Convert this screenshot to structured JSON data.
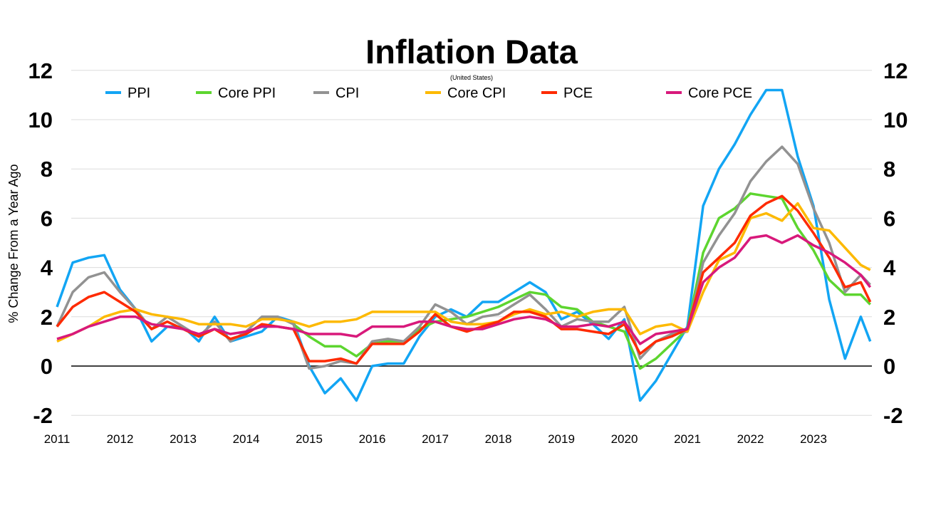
{
  "chart_data": {
    "type": "line",
    "title": "Inflation Data",
    "subtitle": "(United States)",
    "xlabel": "",
    "ylabel": "% Change From a Year Ago",
    "xlim": [
      2011,
      2023.9
    ],
    "ylim": [
      -2,
      12
    ],
    "x_ticks": [
      "2011",
      "2012",
      "2013",
      "2014",
      "2015",
      "2016",
      "2017",
      "2018",
      "2019",
      "2020",
      "2021",
      "2022",
      "2023"
    ],
    "y_ticks": [
      "-2",
      "0",
      "2",
      "4",
      "6",
      "8",
      "10",
      "12"
    ],
    "grid": true,
    "legend_position": "top",
    "x": [
      2011,
      2011.25,
      2011.5,
      2011.75,
      2012,
      2012.25,
      2012.5,
      2012.75,
      2013,
      2013.25,
      2013.5,
      2013.75,
      2014,
      2014.25,
      2014.5,
      2014.75,
      2015,
      2015.25,
      2015.5,
      2015.75,
      2016,
      2016.25,
      2016.5,
      2016.75,
      2017,
      2017.25,
      2017.5,
      2017.75,
      2018,
      2018.25,
      2018.5,
      2018.75,
      2019,
      2019.25,
      2019.5,
      2019.75,
      2020,
      2020.25,
      2020.5,
      2020.75,
      2021,
      2021.25,
      2021.5,
      2021.75,
      2022,
      2022.25,
      2022.5,
      2022.75,
      2023,
      2023.25,
      2023.5,
      2023.75,
      2023.9
    ],
    "series": [
      {
        "name": "PPI",
        "color": "#12a5f4",
        "values": [
          2.4,
          4.2,
          4.4,
          4.5,
          3.1,
          2.3,
          1.0,
          1.6,
          1.6,
          1.0,
          2.0,
          1.0,
          1.2,
          1.4,
          2.0,
          1.8,
          0.0,
          -1.1,
          -0.5,
          -1.4,
          0.0,
          0.1,
          0.1,
          1.2,
          2.0,
          2.3,
          2.0,
          2.6,
          2.6,
          3.0,
          3.4,
          3.0,
          1.9,
          2.2,
          1.7,
          1.1,
          1.9,
          -1.4,
          -0.6,
          0.5,
          1.6,
          6.5,
          8.0,
          9.0,
          10.2,
          11.2,
          11.2,
          8.5,
          6.5,
          2.7,
          0.3,
          2.0,
          1.0
        ]
      },
      {
        "name": "Core PPI",
        "color": "#5dd52f",
        "values": [
          null,
          null,
          null,
          null,
          null,
          null,
          null,
          null,
          null,
          null,
          null,
          null,
          null,
          null,
          null,
          1.7,
          1.2,
          0.8,
          0.8,
          0.4,
          0.9,
          1.0,
          1.0,
          1.5,
          1.8,
          1.9,
          2.0,
          2.2,
          2.4,
          2.7,
          3.0,
          2.9,
          2.4,
          2.3,
          1.8,
          1.6,
          1.4,
          -0.1,
          0.3,
          0.9,
          1.5,
          4.6,
          6.0,
          6.4,
          7.0,
          6.9,
          6.8,
          5.6,
          4.7,
          3.5,
          2.9,
          2.9,
          2.5
        ]
      },
      {
        "name": "CPI",
        "color": "#929292",
        "values": [
          1.6,
          3.0,
          3.6,
          3.8,
          3.0,
          2.3,
          1.5,
          2.0,
          1.6,
          1.2,
          1.8,
          1.0,
          1.4,
          2.0,
          2.0,
          1.7,
          -0.1,
          0.0,
          0.2,
          0.1,
          1.0,
          1.1,
          1.0,
          1.6,
          2.5,
          2.2,
          1.7,
          2.0,
          2.1,
          2.5,
          2.9,
          2.3,
          1.6,
          1.9,
          1.8,
          1.8,
          2.4,
          0.3,
          1.0,
          1.3,
          1.4,
          4.2,
          5.3,
          6.2,
          7.5,
          8.3,
          8.9,
          8.2,
          6.4,
          5.0,
          3.0,
          3.7,
          3.3
        ]
      },
      {
        "name": "Core CPI",
        "color": "#fdb900",
        "values": [
          1.0,
          1.3,
          1.6,
          2.0,
          2.2,
          2.3,
          2.1,
          2.0,
          1.9,
          1.7,
          1.7,
          1.7,
          1.6,
          1.9,
          1.9,
          1.8,
          1.6,
          1.8,
          1.8,
          1.9,
          2.2,
          2.2,
          2.2,
          2.2,
          2.2,
          1.8,
          1.7,
          1.7,
          1.8,
          2.1,
          2.3,
          2.1,
          2.2,
          2.0,
          2.2,
          2.3,
          2.3,
          1.3,
          1.6,
          1.7,
          1.4,
          3.0,
          4.3,
          4.6,
          6.0,
          6.2,
          5.9,
          6.6,
          5.6,
          5.5,
          4.8,
          4.1,
          3.9
        ]
      },
      {
        "name": "PCE",
        "color": "#fe2a00",
        "values": [
          1.6,
          2.4,
          2.8,
          3.0,
          2.6,
          2.2,
          1.5,
          1.8,
          1.5,
          1.2,
          1.5,
          1.1,
          1.3,
          1.7,
          1.6,
          1.5,
          0.2,
          0.2,
          0.3,
          0.1,
          0.9,
          0.9,
          0.9,
          1.4,
          2.1,
          1.6,
          1.4,
          1.6,
          1.8,
          2.2,
          2.2,
          2.0,
          1.5,
          1.5,
          1.4,
          1.3,
          1.7,
          0.5,
          1.0,
          1.2,
          1.5,
          3.8,
          4.4,
          5.0,
          6.1,
          6.6,
          6.9,
          6.3,
          5.4,
          4.4,
          3.2,
          3.4,
          2.6
        ]
      },
      {
        "name": "Core PCE",
        "color": "#d8197b",
        "values": [
          1.1,
          1.3,
          1.6,
          1.8,
          2.0,
          2.0,
          1.7,
          1.6,
          1.5,
          1.3,
          1.5,
          1.3,
          1.4,
          1.6,
          1.6,
          1.5,
          1.3,
          1.3,
          1.3,
          1.2,
          1.6,
          1.6,
          1.6,
          1.8,
          1.8,
          1.6,
          1.5,
          1.5,
          1.7,
          1.9,
          2.0,
          1.9,
          1.6,
          1.6,
          1.7,
          1.6,
          1.8,
          0.9,
          1.3,
          1.4,
          1.5,
          3.4,
          4.0,
          4.4,
          5.2,
          5.3,
          5.0,
          5.3,
          4.9,
          4.6,
          4.2,
          3.7,
          3.2
        ]
      }
    ]
  }
}
